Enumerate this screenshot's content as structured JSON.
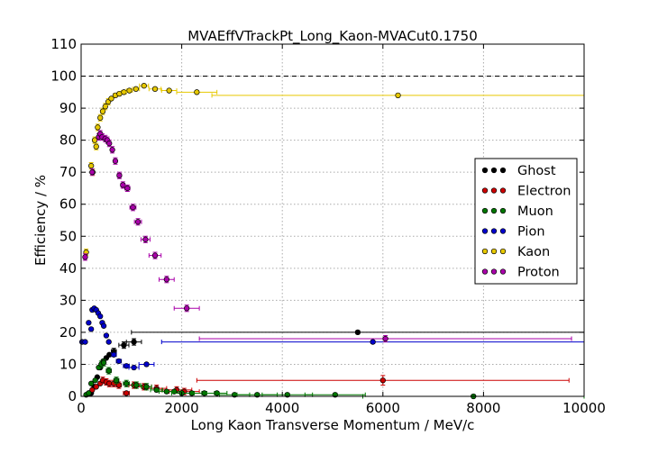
{
  "chart_data": {
    "type": "scatter",
    "title": "MVAEffVTrackPt_Long_Kaon-MVACut0.1750",
    "xlabel": "Long Kaon Transverse Momentum / MeV/c",
    "ylabel": "Efficiency / %",
    "xlim": [
      0,
      10000
    ],
    "ylim": [
      0,
      110
    ],
    "xticks": [
      "0",
      "2000",
      "4000",
      "6000",
      "8000",
      "10000"
    ],
    "yticks": [
      "0",
      "10",
      "20",
      "30",
      "40",
      "50",
      "60",
      "70",
      "80",
      "90",
      "100",
      "110"
    ],
    "grid": true,
    "reference_line_y": 100,
    "legend_position": "center-right",
    "series": [
      {
        "name": "Ghost",
        "color": "#000000",
        "points": [
          [
            200,
            1,
            0,
            0
          ],
          [
            260,
            3,
            0,
            0
          ],
          [
            320,
            6,
            0,
            0
          ],
          [
            380,
            9,
            0,
            0
          ],
          [
            440,
            11,
            0,
            0
          ],
          [
            500,
            12,
            0,
            0
          ],
          [
            560,
            13,
            0,
            0
          ],
          [
            650,
            14,
            50,
            1
          ],
          [
            850,
            16,
            100,
            1
          ],
          [
            1050,
            17,
            150,
            1
          ],
          [
            5500,
            20,
            4500,
            0.5
          ]
        ]
      },
      {
        "name": "Electron",
        "color": "#cc0000",
        "points": [
          [
            150,
            1,
            0,
            0
          ],
          [
            220,
            2,
            0,
            0
          ],
          [
            300,
            3,
            0,
            0
          ],
          [
            380,
            4,
            0,
            0
          ],
          [
            430,
            5,
            0,
            1
          ],
          [
            500,
            4.5,
            0,
            1
          ],
          [
            560,
            4,
            0,
            1
          ],
          [
            650,
            4,
            50,
            1
          ],
          [
            750,
            3.5,
            50,
            1
          ],
          [
            900,
            1,
            60,
            0.5
          ],
          [
            1050,
            3.5,
            100,
            1
          ],
          [
            1250,
            3,
            150,
            1
          ],
          [
            1500,
            2.5,
            200,
            1
          ],
          [
            1900,
            2,
            300,
            1
          ],
          [
            2050,
            1.5,
            300,
            1
          ],
          [
            6000,
            5,
            3700,
            1.5
          ]
        ]
      },
      {
        "name": "Muon",
        "color": "#007700",
        "points": [
          [
            100,
            0.5,
            0,
            0
          ],
          [
            150,
            1,
            0,
            0
          ],
          [
            200,
            4,
            0,
            0
          ],
          [
            280,
            5,
            0,
            0
          ],
          [
            350,
            9,
            0,
            0
          ],
          [
            400,
            10,
            0,
            1
          ],
          [
            450,
            10.5,
            0,
            1
          ],
          [
            550,
            8,
            50,
            1
          ],
          [
            700,
            5,
            50,
            1
          ],
          [
            900,
            4,
            60,
            1
          ],
          [
            1100,
            3.5,
            80,
            1
          ],
          [
            1300,
            3,
            100,
            1
          ],
          [
            1500,
            2,
            120,
            0.5
          ],
          [
            1700,
            1.5,
            150,
            0.5
          ],
          [
            1850,
            1.5,
            150,
            0.5
          ],
          [
            2000,
            1,
            200,
            0.5
          ],
          [
            2200,
            1,
            200,
            0.5
          ],
          [
            2450,
            1,
            200,
            0.5
          ],
          [
            2700,
            1,
            200,
            0.5
          ],
          [
            3050,
            0.5,
            300,
            0.5
          ],
          [
            3500,
            0.5,
            400,
            0.5
          ],
          [
            4100,
            0.5,
            500,
            0.5
          ],
          [
            5050,
            0.5,
            600,
            0.5
          ],
          [
            7800,
            0,
            2200,
            0.5
          ]
        ]
      },
      {
        "name": "Pion",
        "color": "#0000cc",
        "points": [
          [
            20,
            17,
            0,
            0
          ],
          [
            80,
            17,
            0,
            0
          ],
          [
            150,
            23,
            0,
            0
          ],
          [
            200,
            21,
            0,
            0
          ],
          [
            220,
            27,
            0,
            0
          ],
          [
            260,
            27.5,
            0,
            0
          ],
          [
            300,
            27,
            0,
            0
          ],
          [
            340,
            26,
            0,
            0
          ],
          [
            380,
            25,
            0,
            0
          ],
          [
            420,
            23,
            0,
            0
          ],
          [
            450,
            22,
            0,
            0
          ],
          [
            500,
            19,
            0,
            0
          ],
          [
            550,
            17,
            0,
            0
          ],
          [
            650,
            13,
            50,
            0.5
          ],
          [
            750,
            11,
            50,
            0.5
          ],
          [
            900,
            9.5,
            60,
            0.5
          ],
          [
            1050,
            9,
            100,
            0.5
          ],
          [
            1300,
            10,
            150,
            0.5
          ],
          [
            5800,
            17,
            4200,
            0.5
          ]
        ]
      },
      {
        "name": "Kaon",
        "color": "#e6c800",
        "points": [
          [
            100,
            45,
            0,
            1
          ],
          [
            200,
            72,
            0,
            1
          ],
          [
            230,
            70,
            0,
            1
          ],
          [
            270,
            80,
            0,
            1
          ],
          [
            300,
            78,
            0,
            1
          ],
          [
            330,
            84,
            0,
            1
          ],
          [
            380,
            87,
            0,
            1
          ],
          [
            430,
            89,
            0,
            1
          ],
          [
            480,
            90.5,
            0,
            1
          ],
          [
            540,
            92,
            0,
            1
          ],
          [
            600,
            93,
            30,
            0.5
          ],
          [
            680,
            94,
            40,
            0.5
          ],
          [
            760,
            94.5,
            40,
            0.5
          ],
          [
            850,
            95,
            50,
            0.5
          ],
          [
            960,
            95.5,
            60,
            0.5
          ],
          [
            1090,
            96,
            70,
            0.5
          ],
          [
            1250,
            97,
            90,
            0.5
          ],
          [
            1470,
            96,
            120,
            0.5
          ],
          [
            1750,
            95.5,
            150,
            0.5
          ],
          [
            2300,
            95,
            400,
            0.5
          ],
          [
            6300,
            94,
            3700,
            0.5
          ]
        ]
      },
      {
        "name": "Proton",
        "color": "#aa00aa",
        "points": [
          [
            80,
            43.5,
            0,
            1
          ],
          [
            220,
            70,
            0,
            1
          ],
          [
            350,
            81,
            0,
            1
          ],
          [
            380,
            82,
            0,
            1
          ],
          [
            420,
            81,
            0,
            1
          ],
          [
            480,
            80.5,
            0,
            1
          ],
          [
            520,
            80,
            0,
            1
          ],
          [
            560,
            79,
            0,
            1
          ],
          [
            620,
            77,
            0,
            1
          ],
          [
            680,
            73.5,
            0,
            1
          ],
          [
            760,
            69,
            40,
            1
          ],
          [
            830,
            66,
            40,
            1
          ],
          [
            920,
            65,
            50,
            1
          ],
          [
            1030,
            59,
            60,
            1
          ],
          [
            1130,
            54.5,
            70,
            1
          ],
          [
            1280,
            49,
            90,
            1
          ],
          [
            1470,
            44,
            120,
            1
          ],
          [
            1700,
            36.5,
            150,
            1
          ],
          [
            2100,
            27.5,
            250,
            1
          ],
          [
            6050,
            18,
            3700,
            1
          ]
        ]
      }
    ]
  }
}
